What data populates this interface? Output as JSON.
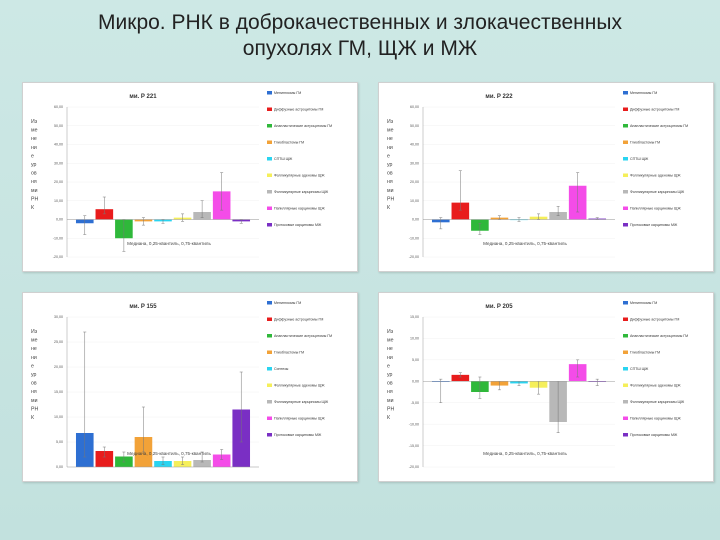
{
  "slide_title": {
    "line1": "Микро. РНК в доброкачественных и злокачественных",
    "line2": "опухолях ГМ, ЩЖ и МЖ"
  },
  "chart_data": [
    {
      "type": "bar",
      "title": "ми. Р 221",
      "ylabel_lines": [
        "Из",
        "ме",
        "не",
        "ни",
        "е",
        "ур",
        "ов",
        "ня",
        "ми",
        "РН",
        "К"
      ],
      "xlabel": "Медиана, 0,25-квантиль, 0,75-квантиль",
      "ylim": [
        -20,
        60
      ],
      "yticks": [
        -20,
        -10,
        0,
        10,
        20,
        30,
        40,
        50,
        60
      ],
      "ytick_labels": [
        "-20,00",
        "-10,00",
        "0,00",
        "10,00",
        "20,00",
        "30,00",
        "40,00",
        "50,00",
        "60,00"
      ],
      "categories": [
        "Менингиомы ГМ",
        "Диффузные астроцитомы ГМ",
        "Анапластические астроцитомы ГМ",
        "Глиобластомы ГМ",
        "СПТШ ЩЖ",
        "Фолликулярные аденомы ЩЖ",
        "Фолликулярные карциномы ЩЖ",
        "Папиллярные карциномы ЩЖ",
        "Протоковые карциномы МЖ"
      ],
      "colors": [
        "#2e6fd2",
        "#e81c1c",
        "#2fb83a",
        "#f2a238",
        "#2ad4f0",
        "#f5ef5a",
        "#b8b8b8",
        "#f44ce8",
        "#7a2fc4"
      ],
      "values": [
        -2,
        5.5,
        -10,
        -1,
        -1,
        1,
        4,
        15,
        -1
      ],
      "err_low": [
        -8,
        3,
        -17,
        -3,
        -2,
        -1,
        1,
        5,
        -2
      ],
      "err_high": [
        2,
        12,
        0,
        1,
        0,
        3,
        10,
        25,
        0
      ]
    },
    {
      "type": "bar",
      "title": "ми. Р 222",
      "ylabel_lines": [
        "Из",
        "ме",
        "не",
        "ни",
        "е",
        "ур",
        "ов",
        "ня",
        "ми",
        "РН",
        "К"
      ],
      "xlabel": "Медиана, 0,25-квантиль, 0,75-квантиль",
      "ylim": [
        -20,
        60
      ],
      "yticks": [
        -20,
        -10,
        0,
        10,
        20,
        30,
        40,
        50,
        60
      ],
      "ytick_labels": [
        "-20,00",
        "-10,00",
        "0,00",
        "10,00",
        "20,00",
        "30,00",
        "40,00",
        "50,00",
        "60,00"
      ],
      "categories": [
        "Менингиомы ГМ",
        "Диффузные астроцитомы ГМ",
        "Анапластические астроцитомы ГМ",
        "Глиобластомы ГМ",
        "СПТШ ЩЖ",
        "Фолликулярные аденомы ЩЖ",
        "Фолликулярные карциномы ЩЖ",
        "Папиллярные карциномы ЩЖ",
        "Протоковые карциномы МЖ"
      ],
      "colors": [
        "#2e6fd2",
        "#e81c1c",
        "#2fb83a",
        "#f2a238",
        "#2ad4f0",
        "#f5ef5a",
        "#b8b8b8",
        "#f44ce8",
        "#7a2fc4"
      ],
      "values": [
        -1.5,
        9,
        -6,
        1,
        0,
        1.5,
        4,
        18,
        0.5
      ],
      "err_low": [
        -5,
        5,
        -8,
        0,
        -1,
        0,
        2,
        4,
        0
      ],
      "err_high": [
        1,
        26,
        -2,
        2,
        1,
        3,
        7,
        25,
        1
      ]
    },
    {
      "type": "bar",
      "title": "ми. Р 155",
      "ylabel_lines": [
        "Из",
        "ме",
        "не",
        "ни",
        "е",
        "ур",
        "ов",
        "ня",
        "ми",
        "РН",
        "К"
      ],
      "xlabel": "Медиана, 0,25-квантиль, 0,75-квантиль",
      "ylim": [
        0,
        30
      ],
      "yticks": [
        0,
        5,
        10,
        15,
        20,
        25,
        30
      ],
      "ytick_labels": [
        "0,00",
        "5,00",
        "10,00",
        "15,00",
        "20,00",
        "25,00",
        "30,00"
      ],
      "categories": [
        "Менингиомы ГМ",
        "Диффузные астроцитомы ГМ",
        "Анапластические астроцитомы ГМ",
        "Глиобластомы ГМ",
        "Синтезы",
        "Фолликулярные аденомы ЩЖ",
        "Фолликулярные карциномы ЩЖ",
        "Папиллярные карциномы ЩЖ",
        "Протоковые карциномы МЖ"
      ],
      "colors": [
        "#2e6fd2",
        "#e81c1c",
        "#2fb83a",
        "#f2a238",
        "#2ad4f0",
        "#f5ef5a",
        "#b8b8b8",
        "#f44ce8",
        "#7a2fc4"
      ],
      "values": [
        6.8,
        3.2,
        2.1,
        6,
        1.2,
        1.2,
        1.4,
        2.5,
        11.5
      ],
      "err_low": [
        2,
        2,
        1,
        3,
        0.5,
        0.5,
        1,
        1.5,
        5
      ],
      "err_high": [
        27,
        4,
        3,
        12,
        2,
        2,
        3,
        3.5,
        19
      ]
    },
    {
      "type": "bar",
      "title": "ми. Р 205",
      "ylabel_lines": [
        "Из",
        "ме",
        "не",
        "ни",
        "е",
        "ур",
        "ов",
        "ня",
        "ми",
        "РН",
        "К"
      ],
      "xlabel": "Медиана, 0,25-квантиль, 0,75-квантиль",
      "ylim": [
        -20,
        15
      ],
      "yticks": [
        -20,
        -15,
        -10,
        -5,
        0,
        5,
        10,
        15
      ],
      "ytick_labels": [
        "-20,00",
        "-15,00",
        "-10,00",
        "-5,00",
        "0,00",
        "5,00",
        "10,00",
        "15,00"
      ],
      "categories": [
        "Менингиомы ГМ",
        "Диффузные астроцитомы ГМ",
        "Анапластические астроцитомы ГМ",
        "Глиобластомы ГМ",
        "СПТШ ЩЖ",
        "Фолликулярные аденомы ЩЖ",
        "Фолликулярные карциномы ЩЖ",
        "Папиллярные карциномы ЩЖ",
        "Протоковые карциномы МЖ"
      ],
      "colors": [
        "#2e6fd2",
        "#e81c1c",
        "#2fb83a",
        "#f2a238",
        "#2ad4f0",
        "#f5ef5a",
        "#b8b8b8",
        "#f44ce8",
        "#7a2fc4"
      ],
      "values": [
        0,
        1.5,
        -2.5,
        -1,
        -0.5,
        -1.5,
        -9.5,
        4,
        0
      ],
      "err_low": [
        -5,
        1,
        -4,
        -2,
        -1,
        -3,
        -12,
        1,
        -1
      ],
      "err_high": [
        0.5,
        2,
        1,
        0,
        0,
        0,
        0,
        5,
        0.5
      ]
    }
  ]
}
